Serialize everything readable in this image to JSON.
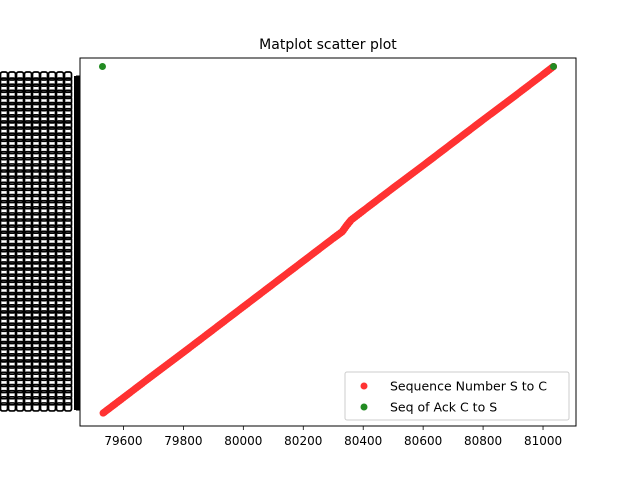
{
  "chart_data": {
    "type": "scatter",
    "title": "Matplot scatter plot",
    "xlabel": "",
    "ylabel": "",
    "xlim": [
      79455,
      81110
    ],
    "ylim": [
      0,
      1
    ],
    "x_ticks": [
      79600,
      79800,
      80000,
      80200,
      80400,
      80600,
      80800,
      81000
    ],
    "grid": false,
    "legend_position": "lower-right",
    "series": [
      {
        "name": "Sequence Number S to C",
        "color": "#ff3333",
        "points": [
          [
            79532,
            0.035
          ],
          [
            79600,
            0.077
          ],
          [
            79700,
            0.139
          ],
          [
            79800,
            0.2
          ],
          [
            79900,
            0.262
          ],
          [
            80000,
            0.324
          ],
          [
            80100,
            0.386
          ],
          [
            80200,
            0.448
          ],
          [
            80300,
            0.51
          ],
          [
            80330,
            0.528
          ],
          [
            80345,
            0.545
          ],
          [
            80360,
            0.56
          ],
          [
            80400,
            0.585
          ],
          [
            80500,
            0.647
          ],
          [
            80600,
            0.708
          ],
          [
            80700,
            0.77
          ],
          [
            80800,
            0.832
          ],
          [
            80900,
            0.893
          ],
          [
            81000,
            0.955
          ],
          [
            81035,
            0.977
          ]
        ]
      },
      {
        "name": "Seq of Ack C to S",
        "color": "#228b22",
        "points": [
          [
            79530,
            0.977
          ],
          [
            81035,
            0.977
          ]
        ]
      }
    ]
  }
}
